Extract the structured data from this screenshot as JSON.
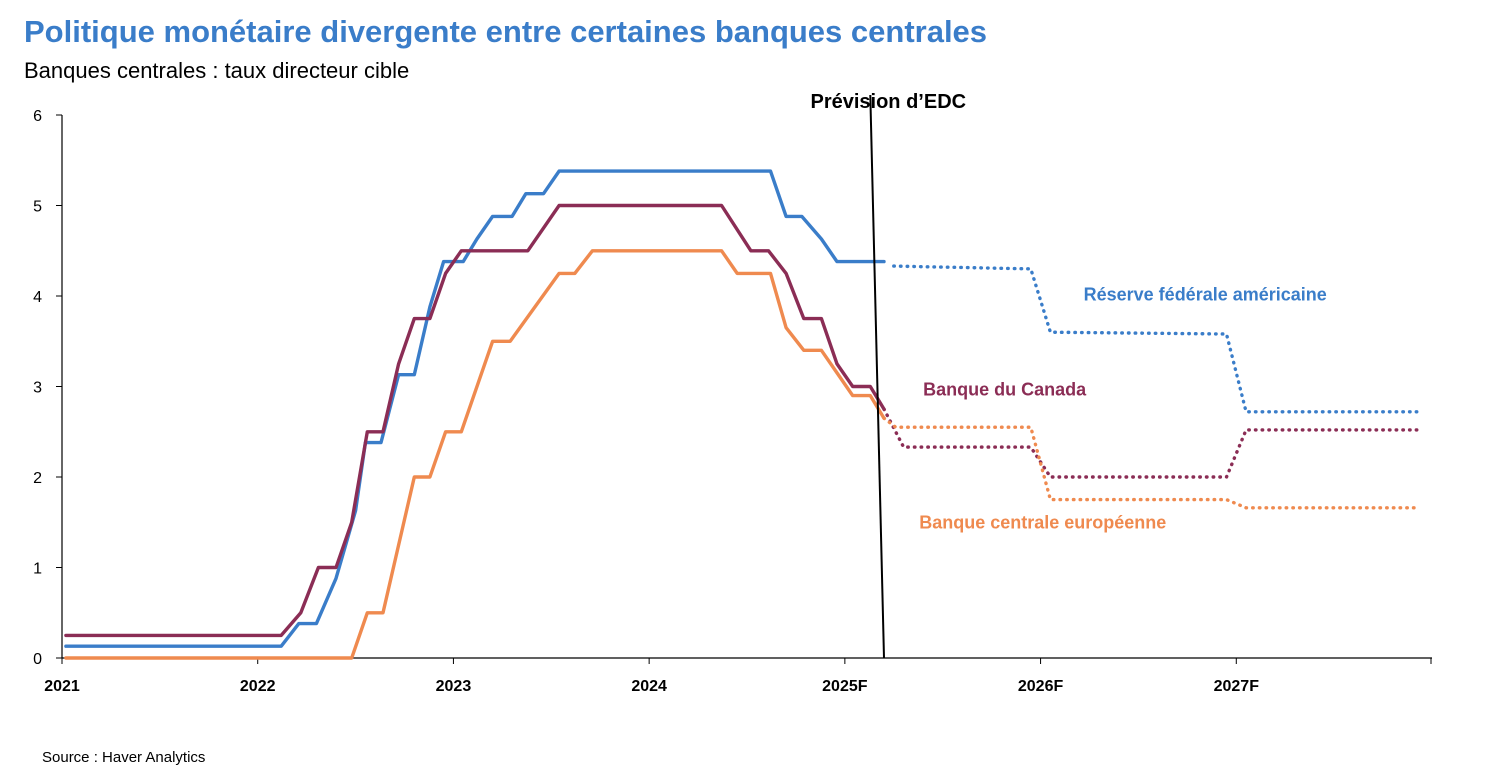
{
  "header": {
    "title": "Politique monétaire divergente entre certaines banques centrales",
    "subtitle": "Banques centrales : taux directeur cible"
  },
  "footer": {
    "source": "Source : Haver Analytics"
  },
  "colors": {
    "fed": "#3a7dc9",
    "boc": "#8b2d55",
    "ecb": "#ef8a4f",
    "title": "#3a7dc9"
  },
  "chart_data": {
    "type": "line",
    "title": "Politique monétaire divergente entre certaines banques centrales",
    "subtitle": "Banques centrales : taux directeur cible",
    "xlabel": "",
    "ylabel": "",
    "xlim": [
      2021,
      2028
    ],
    "ylim": [
      0,
      6
    ],
    "yticks": [
      0,
      1,
      2,
      3,
      4,
      5,
      6
    ],
    "xticks": [
      {
        "value": 2021,
        "label": "2021"
      },
      {
        "value": 2022,
        "label": "2022"
      },
      {
        "value": 2023,
        "label": "2023"
      },
      {
        "value": 2024,
        "label": "2024"
      },
      {
        "value": 2025,
        "label": "2025F"
      },
      {
        "value": 2026,
        "label": "2026F"
      },
      {
        "value": 2027,
        "label": "2027F"
      }
    ],
    "grid": false,
    "forecast_line": {
      "x_top": 2025.13,
      "x_bottom": 2025.2,
      "label": "Prévision d’EDC"
    },
    "series": [
      {
        "name": "Réserve fédérale américaine",
        "color": "#3a7dc9",
        "label_pos": {
          "x": 2026.22,
          "y": 3.95
        },
        "actual": [
          [
            2021.02,
            0.13
          ],
          [
            2022.12,
            0.13
          ],
          [
            2022.21,
            0.38
          ],
          [
            2022.3,
            0.38
          ],
          [
            2022.4,
            0.88
          ],
          [
            2022.5,
            1.63
          ],
          [
            2022.55,
            2.38
          ],
          [
            2022.63,
            2.38
          ],
          [
            2022.72,
            3.13
          ],
          [
            2022.8,
            3.13
          ],
          [
            2022.88,
            3.88
          ],
          [
            2022.95,
            4.38
          ],
          [
            2023.05,
            4.38
          ],
          [
            2023.12,
            4.63
          ],
          [
            2023.2,
            4.88
          ],
          [
            2023.3,
            4.88
          ],
          [
            2023.37,
            5.13
          ],
          [
            2023.46,
            5.13
          ],
          [
            2023.54,
            5.38
          ],
          [
            2024.62,
            5.38
          ],
          [
            2024.7,
            4.88
          ],
          [
            2024.78,
            4.88
          ],
          [
            2024.88,
            4.63
          ],
          [
            2024.96,
            4.38
          ],
          [
            2025.2,
            4.38
          ]
        ],
        "forecast": [
          [
            2025.25,
            4.33
          ],
          [
            2025.95,
            4.3
          ],
          [
            2026.05,
            3.6
          ],
          [
            2026.95,
            3.58
          ],
          [
            2027.05,
            2.72
          ],
          [
            2027.93,
            2.72
          ]
        ]
      },
      {
        "name": "Banque du Canada",
        "color": "#8b2d55",
        "label_pos": {
          "x": 2025.4,
          "y": 2.9
        },
        "actual": [
          [
            2021.02,
            0.25
          ],
          [
            2022.12,
            0.25
          ],
          [
            2022.22,
            0.5
          ],
          [
            2022.31,
            1.0
          ],
          [
            2022.4,
            1.0
          ],
          [
            2022.48,
            1.5
          ],
          [
            2022.56,
            2.5
          ],
          [
            2022.64,
            2.5
          ],
          [
            2022.72,
            3.25
          ],
          [
            2022.8,
            3.75
          ],
          [
            2022.88,
            3.75
          ],
          [
            2022.96,
            4.25
          ],
          [
            2023.04,
            4.5
          ],
          [
            2023.38,
            4.5
          ],
          [
            2023.54,
            5.0
          ],
          [
            2024.37,
            5.0
          ],
          [
            2024.52,
            4.5
          ],
          [
            2024.61,
            4.5
          ],
          [
            2024.7,
            4.25
          ],
          [
            2024.79,
            3.75
          ],
          [
            2024.88,
            3.75
          ],
          [
            2024.96,
            3.25
          ],
          [
            2025.04,
            3.0
          ],
          [
            2025.13,
            3.0
          ],
          [
            2025.2,
            2.75
          ]
        ],
        "forecast": [
          [
            2025.2,
            2.75
          ],
          [
            2025.3,
            2.33
          ],
          [
            2025.95,
            2.33
          ],
          [
            2026.05,
            2.0
          ],
          [
            2026.95,
            2.0
          ],
          [
            2027.05,
            2.52
          ],
          [
            2027.93,
            2.52
          ]
        ]
      },
      {
        "name": "Banque centrale européenne",
        "color": "#ef8a4f",
        "label_pos": {
          "x": 2025.38,
          "y": 1.43
        },
        "actual": [
          [
            2021.02,
            0.0
          ],
          [
            2022.48,
            0.0
          ],
          [
            2022.56,
            0.5
          ],
          [
            2022.64,
            0.5
          ],
          [
            2022.8,
            2.0
          ],
          [
            2022.88,
            2.0
          ],
          [
            2022.96,
            2.5
          ],
          [
            2023.04,
            2.5
          ],
          [
            2023.2,
            3.5
          ],
          [
            2023.29,
            3.5
          ],
          [
            2023.54,
            4.25
          ],
          [
            2023.62,
            4.25
          ],
          [
            2023.71,
            4.5
          ],
          [
            2024.37,
            4.5
          ],
          [
            2024.45,
            4.25
          ],
          [
            2024.62,
            4.25
          ],
          [
            2024.7,
            3.65
          ],
          [
            2024.79,
            3.4
          ],
          [
            2024.88,
            3.4
          ],
          [
            2024.96,
            3.15
          ],
          [
            2025.04,
            2.9
          ],
          [
            2025.13,
            2.9
          ],
          [
            2025.2,
            2.65
          ]
        ],
        "forecast": [
          [
            2025.2,
            2.65
          ],
          [
            2025.26,
            2.55
          ],
          [
            2025.95,
            2.55
          ],
          [
            2026.05,
            1.75
          ],
          [
            2026.95,
            1.75
          ],
          [
            2027.05,
            1.66
          ],
          [
            2027.93,
            1.66
          ]
        ]
      }
    ]
  }
}
